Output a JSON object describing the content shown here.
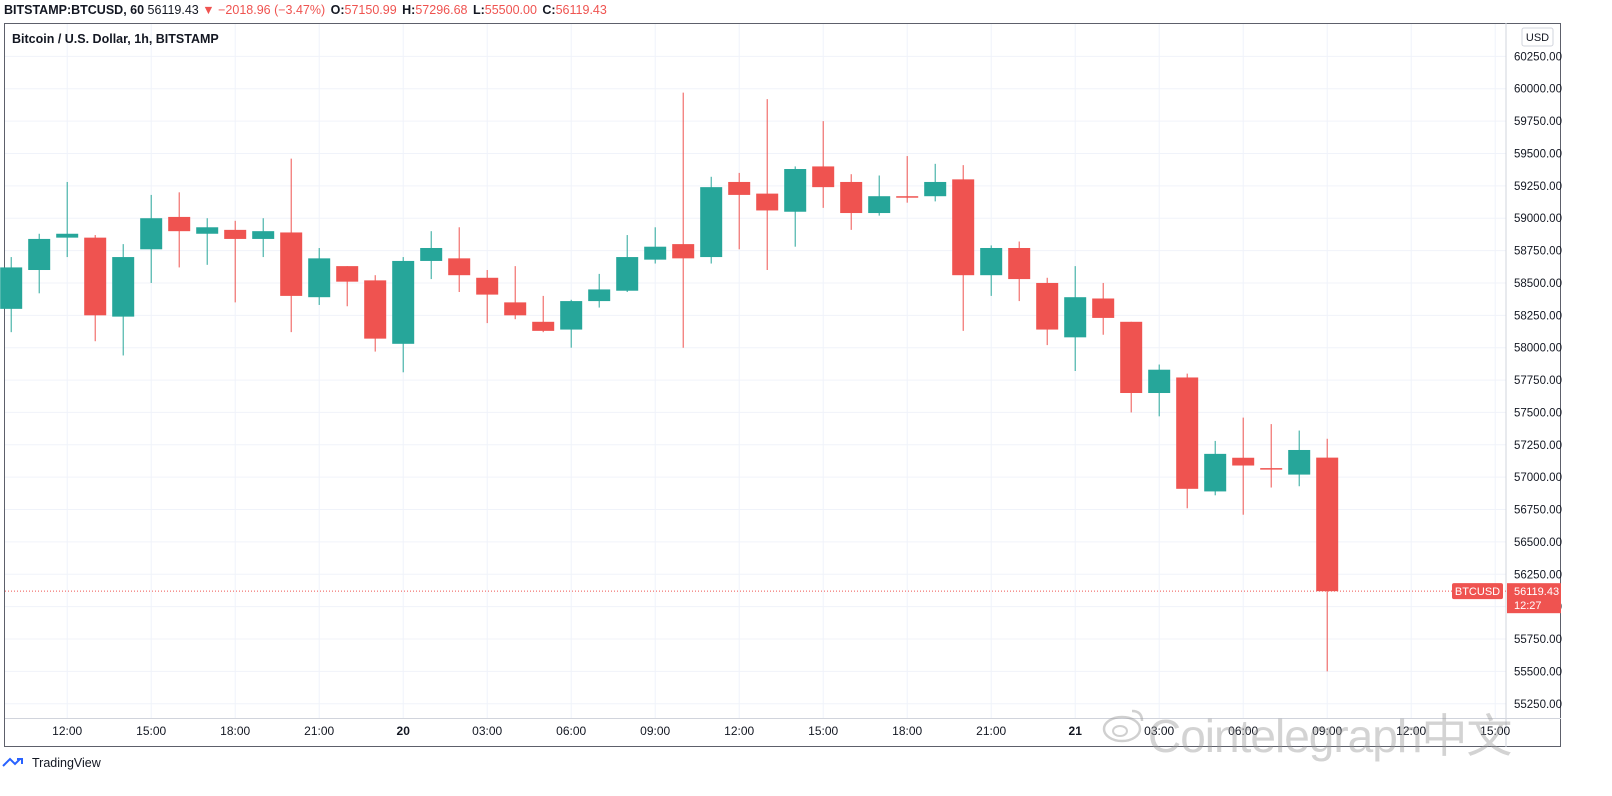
{
  "header": {
    "symbol": "BITSTAMP:BTCUSD, 60",
    "last": "56119.43",
    "arrow": "▼",
    "change": "−2018.96 (−3.47%)",
    "open_label": "O:",
    "open": "57150.99",
    "high_label": "H:",
    "high": "57296.68",
    "low_label": "L:",
    "low": "55500.00",
    "close_label": "C:",
    "close": "56119.43"
  },
  "title": "Bitcoin / U.S. Dollar, 1h, BITSTAMP",
  "footer": {
    "brand": "TradingView"
  },
  "watermark": {
    "text": "Cointelegraph中文"
  },
  "price_scale": {
    "currency": "USD"
  },
  "price_label": {
    "symbol": "BTCUSD",
    "price": "56119.43",
    "countdown": "12:27"
  },
  "colors": {
    "up": "#26a69a",
    "down": "#ef5350",
    "grid": "#f0f3fa",
    "axis_text": "#131722"
  },
  "chart_data": {
    "type": "candlestick",
    "title": "Bitcoin / U.S. Dollar, 1h, BITSTAMP",
    "ylim": [
      55140,
      60500
    ],
    "yticks": [
      55250,
      55500,
      55750,
      56000,
      56250,
      56500,
      56750,
      57000,
      57250,
      57500,
      57750,
      58000,
      58250,
      58500,
      58750,
      59000,
      59250,
      59500,
      59750,
      60000,
      60250
    ],
    "ytick_labels": [
      "55250.00",
      "55500.00",
      "55750.00",
      "56000.00",
      "56250.00",
      "56500.00",
      "56750.00",
      "57000.00",
      "57250.00",
      "57500.00",
      "57750.00",
      "58000.00",
      "58250.00",
      "58500.00",
      "58750.00",
      "59000.00",
      "59250.00",
      "59500.00",
      "59750.00",
      "60000.00",
      "60250.00"
    ],
    "xticks": [
      {
        "index": 2,
        "label": "12:00"
      },
      {
        "index": 5,
        "label": "15:00"
      },
      {
        "index": 8,
        "label": "18:00"
      },
      {
        "index": 11,
        "label": "21:00"
      },
      {
        "index": 14,
        "label": "20",
        "bold": true
      },
      {
        "index": 17,
        "label": "03:00"
      },
      {
        "index": 20,
        "label": "06:00"
      },
      {
        "index": 23,
        "label": "09:00"
      },
      {
        "index": 26,
        "label": "12:00"
      },
      {
        "index": 29,
        "label": "15:00"
      },
      {
        "index": 32,
        "label": "18:00"
      },
      {
        "index": 35,
        "label": "21:00"
      },
      {
        "index": 38,
        "label": "21",
        "bold": true
      },
      {
        "index": 41,
        "label": "03:00"
      },
      {
        "index": 44,
        "label": "06:00"
      },
      {
        "index": 47,
        "label": "09:00"
      },
      {
        "index": 50,
        "label": "12:00"
      },
      {
        "index": 53,
        "label": "15:00"
      }
    ],
    "last_price": 56119.43,
    "candles": [
      {
        "o": 58300,
        "h": 58700,
        "l": 58120,
        "c": 58620
      },
      {
        "o": 58600,
        "h": 58880,
        "l": 58420,
        "c": 58840
      },
      {
        "o": 58850,
        "h": 59280,
        "l": 58700,
        "c": 58880
      },
      {
        "o": 58850,
        "h": 58870,
        "l": 58050,
        "c": 58250
      },
      {
        "o": 58240,
        "h": 58800,
        "l": 57940,
        "c": 58700
      },
      {
        "o": 58760,
        "h": 59180,
        "l": 58500,
        "c": 59000
      },
      {
        "o": 59010,
        "h": 59200,
        "l": 58620,
        "c": 58900
      },
      {
        "o": 58880,
        "h": 59000,
        "l": 58640,
        "c": 58930
      },
      {
        "o": 58910,
        "h": 58980,
        "l": 58350,
        "c": 58840
      },
      {
        "o": 58840,
        "h": 59000,
        "l": 58700,
        "c": 58900
      },
      {
        "o": 58890,
        "h": 59460,
        "l": 58120,
        "c": 58400
      },
      {
        "o": 58390,
        "h": 58770,
        "l": 58330,
        "c": 58690
      },
      {
        "o": 58630,
        "h": 58630,
        "l": 58320,
        "c": 58510
      },
      {
        "o": 58520,
        "h": 58560,
        "l": 57970,
        "c": 58070
      },
      {
        "o": 58030,
        "h": 58700,
        "l": 57810,
        "c": 58670
      },
      {
        "o": 58670,
        "h": 58900,
        "l": 58530,
        "c": 58770
      },
      {
        "o": 58690,
        "h": 58930,
        "l": 58430,
        "c": 58560
      },
      {
        "o": 58540,
        "h": 58600,
        "l": 58190,
        "c": 58410
      },
      {
        "o": 58350,
        "h": 58630,
        "l": 58220,
        "c": 58250
      },
      {
        "o": 58200,
        "h": 58400,
        "l": 58120,
        "c": 58130
      },
      {
        "o": 58140,
        "h": 58370,
        "l": 58000,
        "c": 58360
      },
      {
        "o": 58360,
        "h": 58570,
        "l": 58310,
        "c": 58450
      },
      {
        "o": 58440,
        "h": 58870,
        "l": 58430,
        "c": 58700
      },
      {
        "o": 58680,
        "h": 58930,
        "l": 58650,
        "c": 58780
      },
      {
        "o": 58800,
        "h": 59970,
        "l": 58000,
        "c": 58690
      },
      {
        "o": 58700,
        "h": 59320,
        "l": 58650,
        "c": 59240
      },
      {
        "o": 59280,
        "h": 59350,
        "l": 58760,
        "c": 59180
      },
      {
        "o": 59190,
        "h": 59920,
        "l": 58600,
        "c": 59060
      },
      {
        "o": 59050,
        "h": 59400,
        "l": 58780,
        "c": 59380
      },
      {
        "o": 59400,
        "h": 59750,
        "l": 59080,
        "c": 59240
      },
      {
        "o": 59280,
        "h": 59340,
        "l": 58910,
        "c": 59040
      },
      {
        "o": 59040,
        "h": 59330,
        "l": 59020,
        "c": 59170
      },
      {
        "o": 59170,
        "h": 59480,
        "l": 59120,
        "c": 59160
      },
      {
        "o": 59170,
        "h": 59420,
        "l": 59130,
        "c": 59280
      },
      {
        "o": 59300,
        "h": 59410,
        "l": 58130,
        "c": 58560
      },
      {
        "o": 58560,
        "h": 58790,
        "l": 58400,
        "c": 58770
      },
      {
        "o": 58770,
        "h": 58820,
        "l": 58360,
        "c": 58530
      },
      {
        "o": 58500,
        "h": 58540,
        "l": 58020,
        "c": 58140
      },
      {
        "o": 58080,
        "h": 58630,
        "l": 57820,
        "c": 58390
      },
      {
        "o": 58380,
        "h": 58500,
        "l": 58100,
        "c": 58230
      },
      {
        "o": 58200,
        "h": 58200,
        "l": 57500,
        "c": 57650
      },
      {
        "o": 57650,
        "h": 57870,
        "l": 57470,
        "c": 57830
      },
      {
        "o": 57770,
        "h": 57800,
        "l": 56760,
        "c": 56910
      },
      {
        "o": 56890,
        "h": 57280,
        "l": 56860,
        "c": 57180
      },
      {
        "o": 57150,
        "h": 57460,
        "l": 56710,
        "c": 57090
      },
      {
        "o": 57070,
        "h": 57410,
        "l": 56920,
        "c": 57060
      },
      {
        "o": 57020,
        "h": 57360,
        "l": 56930,
        "c": 57210
      },
      {
        "o": 57150.99,
        "h": 57296.68,
        "l": 55500.0,
        "c": 56119.43
      }
    ]
  }
}
